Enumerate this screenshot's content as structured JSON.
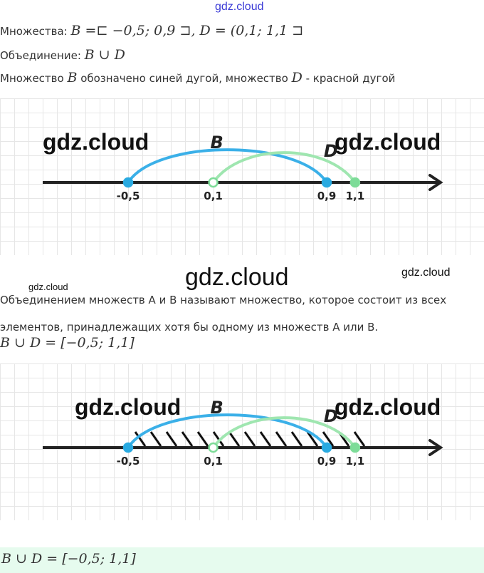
{
  "watermark": "gdz.cloud",
  "line1": {
    "label": "Множества:",
    "formula": "B =⊏ −0,5; 0,9 ⊐, D = (0,1; 1,1 ⊐"
  },
  "line2": {
    "label": "Объединение:",
    "formula": "B ∪ D"
  },
  "line3": {
    "t1": "Множество",
    "b": "B",
    "t2": "обозначено синей дугой, множество",
    "d": "D",
    "t3": "- красной дугой"
  },
  "definition": [
    "Объединением множеств А и В называют множество, которое состоит из всех",
    "элементов, принадлежащих хотя бы одному из множеств А или В."
  ],
  "union_formula": "B ∪ D = [−0,5; 1,1]",
  "answer": "B ∪ D = [−0,5; 1,1]",
  "diagram": {
    "points": [
      {
        "value": -0.5,
        "label": "-0,5",
        "filled": true,
        "color": "#29aae1"
      },
      {
        "value": 0.1,
        "label": "0,1",
        "filled": false,
        "color": "#7ddc98"
      },
      {
        "value": 0.9,
        "label": "0,9",
        "filled": true,
        "color": "#29aae1"
      },
      {
        "value": 1.1,
        "label": "1,1",
        "filled": true,
        "color": "#7ddc98"
      }
    ],
    "arcs": [
      {
        "name": "B",
        "from": -0.5,
        "to": 0.9,
        "color": "#3bb0e8"
      },
      {
        "name": "D",
        "from": 0.1,
        "to": 1.1,
        "color": "#9fe6b0"
      }
    ],
    "hatch": {
      "from": -0.5,
      "to": 1.1
    }
  }
}
